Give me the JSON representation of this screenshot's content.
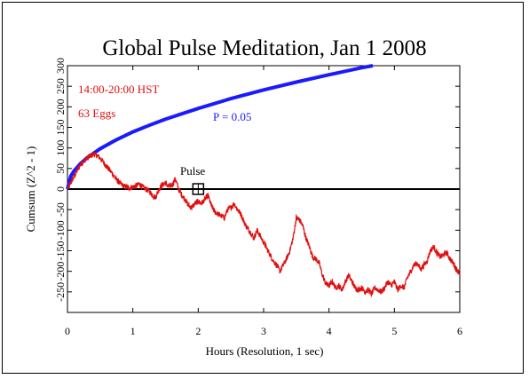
{
  "chart_data": {
    "type": "line",
    "title": "Global Pulse Meditation, Jan 1 2008",
    "xlabel": "Hours (Resolution, 1 sec)",
    "ylabel": "Cumsum (Z^2 - 1)",
    "xlim": [
      0,
      6
    ],
    "ylim": [
      -300,
      300
    ],
    "x_ticks": [
      0,
      1,
      2,
      3,
      4,
      5,
      6
    ],
    "y_ticks": [
      -250,
      -200,
      -150,
      -100,
      -50,
      0,
      50,
      100,
      150,
      200,
      250,
      300
    ],
    "annotations": {
      "time_range": "14:00-20:00 HST",
      "eggs": "63 Eggs",
      "p_label": "P = 0.05",
      "pulse_label": "Pulse",
      "pulse_marker": {
        "x": 2.0,
        "y": 0
      }
    },
    "reference_line": {
      "y": 0
    },
    "series": [
      {
        "color": "#1a1aff",
        "formula": "probability envelope ~ 1.645*sqrt(2*63*t)",
        "x": [
          0,
          0.05,
          0.1,
          0.2,
          0.3,
          0.5,
          0.75,
          1.0,
          1.25,
          1.5,
          2.0,
          2.5,
          3.0,
          3.5,
          4.0,
          4.5,
          4.67
        ],
        "values": [
          0,
          31,
          44,
          62,
          76,
          98,
          120,
          139,
          155,
          170,
          196,
          220,
          241,
          260,
          278,
          295,
          300
        ]
      },
      {
        "color": "#e01010",
        "x": [
          0,
          0.05,
          0.1,
          0.15,
          0.2,
          0.25,
          0.3,
          0.35,
          0.4,
          0.45,
          0.5,
          0.55,
          0.6,
          0.65,
          0.7,
          0.75,
          0.8,
          0.85,
          0.9,
          0.95,
          1.0,
          1.05,
          1.1,
          1.15,
          1.2,
          1.25,
          1.3,
          1.35,
          1.4,
          1.45,
          1.5,
          1.55,
          1.6,
          1.65,
          1.7,
          1.75,
          1.8,
          1.85,
          1.9,
          1.95,
          2.0,
          2.05,
          2.1,
          2.15,
          2.2,
          2.25,
          2.3,
          2.35,
          2.4,
          2.45,
          2.5,
          2.55,
          2.6,
          2.65,
          2.7,
          2.75,
          2.8,
          2.85,
          2.9,
          2.95,
          3.0,
          3.05,
          3.1,
          3.15,
          3.2,
          3.25,
          3.3,
          3.35,
          3.4,
          3.45,
          3.5,
          3.55,
          3.6,
          3.65,
          3.7,
          3.75,
          3.8,
          3.85,
          3.9,
          3.95,
          4.0,
          4.05,
          4.1,
          4.15,
          4.2,
          4.25,
          4.3,
          4.35,
          4.4,
          4.45,
          4.5,
          4.55,
          4.6,
          4.65,
          4.7,
          4.75,
          4.8,
          4.85,
          4.9,
          4.95,
          5.0,
          5.05,
          5.1,
          5.15,
          5.2,
          5.25,
          5.3,
          5.35,
          5.4,
          5.45,
          5.5,
          5.55,
          5.6,
          5.65,
          5.7,
          5.75,
          5.8,
          5.85,
          5.9,
          5.95,
          6.0
        ],
        "values": [
          0,
          15,
          30,
          45,
          60,
          68,
          75,
          80,
          85,
          82,
          75,
          65,
          55,
          45,
          35,
          22,
          15,
          8,
          5,
          3,
          5,
          8,
          12,
          5,
          0,
          -5,
          -15,
          -20,
          0,
          10,
          15,
          5,
          10,
          25,
          0,
          -15,
          -25,
          -40,
          -45,
          -35,
          -30,
          -35,
          -25,
          -15,
          -40,
          -55,
          -60,
          -65,
          -70,
          -50,
          -45,
          -35,
          -50,
          -60,
          -80,
          -95,
          -105,
          -120,
          -100,
          -115,
          -130,
          -145,
          -160,
          -175,
          -185,
          -200,
          -185,
          -170,
          -150,
          -120,
          -70,
          -75,
          -90,
          -120,
          -140,
          -165,
          -170,
          -180,
          -210,
          -230,
          -235,
          -225,
          -240,
          -235,
          -245,
          -225,
          -210,
          -225,
          -240,
          -245,
          -240,
          -250,
          -245,
          -255,
          -240,
          -245,
          -250,
          -240,
          -225,
          -235,
          -225,
          -245,
          -235,
          -240,
          -215,
          -200,
          -185,
          -180,
          -195,
          -185,
          -175,
          -150,
          -140,
          -155,
          -165,
          -160,
          -155,
          -170,
          -180,
          -195,
          -205
        ]
      }
    ]
  }
}
